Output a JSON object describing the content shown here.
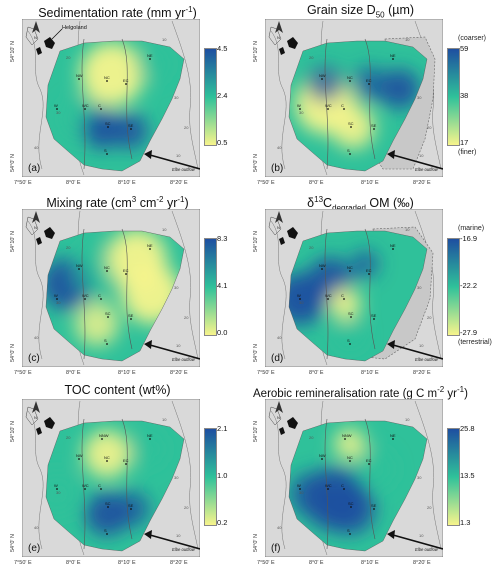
{
  "colors": {
    "land": "#d9d9d9",
    "low": "#f7f48c",
    "mid": "#2fc19a",
    "high": "#1e4fa0",
    "nodata": "#c8c8c8"
  },
  "axes": {
    "lat_top": "54°10' N",
    "lat_bottom": "54°0' N",
    "lon": [
      "7°50' E",
      "8°0' E",
      "8°10' E",
      "8°20' E"
    ]
  },
  "map_labels": {
    "helgoland": "Helgoland",
    "elbe": "Elbe outflow",
    "north": "N",
    "depths": [
      "20",
      "30",
      "40",
      "10",
      "30",
      "20",
      "10"
    ]
  },
  "stations": [
    "NE",
    "NW",
    "NNW",
    "NC",
    "EC",
    "W",
    "WC",
    "C",
    "SC",
    "SE",
    "S"
  ],
  "panels": [
    {
      "id": "a",
      "label": "(a)",
      "title_main": "Sedimentation rate (mm yr",
      "title_sup": "-1",
      "title_end": ")",
      "ticks": [
        "4.5",
        "2.4",
        "0.5"
      ],
      "note_top": "",
      "note_bottom": ""
    },
    {
      "id": "b",
      "label": "(b)",
      "title_main": "Grain size D",
      "title_sub": "50",
      "title_end": " (µm)",
      "ticks": [
        "59",
        "38",
        "17"
      ],
      "note_top": "(coarser)",
      "note_bottom": "(finer)"
    },
    {
      "id": "c",
      "label": "(c)",
      "title_main": "Mixing rate (cm",
      "title_sup": "3",
      "title_mid": " cm",
      "title_sup2": "-2",
      "title_mid2": " yr",
      "title_sup3": "-1",
      "title_end": ")",
      "ticks": [
        "8.3",
        "4.1",
        "0.0"
      ],
      "note_top": "",
      "note_bottom": ""
    },
    {
      "id": "d",
      "label": "(d)",
      "title_main": "δ",
      "title_sup": "13",
      "title_mid": "C",
      "title_sub": "degraded",
      "title_end": " OM  (‰)",
      "ticks": [
        "-16.9",
        "-22.2",
        "-27.9"
      ],
      "note_top": "(marine)",
      "note_bottom": "(terrestrial)"
    },
    {
      "id": "e",
      "label": "(e)",
      "title_main": "TOC content (wt%)",
      "ticks": [
        "2.1",
        "1.0",
        "0.2"
      ],
      "note_top": "",
      "note_bottom": ""
    },
    {
      "id": "f",
      "label": "(f)",
      "title_main": "Aerobic remineralisation rate (g C m",
      "title_sup": "-2",
      "title_mid": " yr",
      "title_sup2": "-1",
      "title_end": ")",
      "ticks": [
        "25.8",
        "13.5",
        "1.3"
      ],
      "note_top": "",
      "note_bottom": ""
    }
  ]
}
